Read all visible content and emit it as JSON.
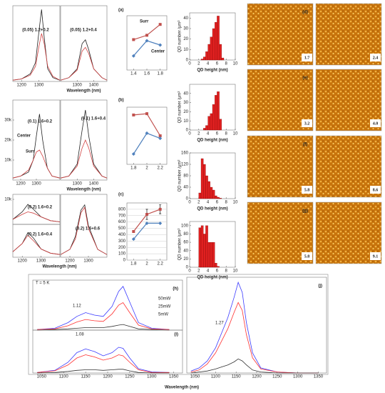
{
  "chart_data": [
    {
      "type": "line",
      "title": "(0.05) 1.2+0.2",
      "x": [
        1150,
        1200,
        1250,
        1280,
        1300,
        1315,
        1330,
        1350,
        1380,
        1420
      ],
      "xlim": [
        1150,
        1420
      ],
      "xticks": [
        1200,
        1300
      ],
      "ylim": [
        0,
        60000
      ],
      "series": [
        {
          "color": "#222222",
          "values": [
            1000,
            2000,
            6000,
            15000,
            40000,
            57000,
            35000,
            10000,
            3000,
            1000
          ]
        },
        {
          "color": "#d04040",
          "values": [
            1000,
            2000,
            5000,
            12000,
            28000,
            38000,
            30000,
            12000,
            4000,
            1000
          ]
        }
      ]
    },
    {
      "type": "line",
      "title": "(0.05) 1.2+0.4",
      "x": [
        1200,
        1250,
        1300,
        1330,
        1350,
        1370,
        1400,
        1450,
        1480
      ],
      "xlim": [
        1200,
        1480
      ],
      "xticks": [
        1300,
        1400
      ],
      "ylim": [
        0,
        60000
      ],
      "xlabel": "Wavelength (nm)",
      "series": [
        {
          "color": "#222222",
          "values": [
            1000,
            3000,
            10000,
            30000,
            33000,
            25000,
            10000,
            3000,
            1000
          ]
        },
        {
          "color": "#d04040",
          "values": [
            1000,
            3000,
            9000,
            24000,
            27000,
            22000,
            10000,
            3000,
            1000
          ]
        }
      ]
    },
    {
      "type": "line",
      "title": "(0.1) 1.6+0.2",
      "x": [
        1150,
        1200,
        1250,
        1280,
        1300,
        1320,
        1340,
        1370,
        1400,
        1450
      ],
      "xlim": [
        1150,
        1450
      ],
      "xticks": [
        1200,
        1300
      ],
      "ylim": [
        0,
        40000
      ],
      "yticks": [
        {
          "value": 10000,
          "label": "10k"
        },
        {
          "value": 20000,
          "label": "20k"
        },
        {
          "value": 30000,
          "label": "30k"
        }
      ],
      "annotations": [
        {
          "text": "Center",
          "color": "#111111"
        },
        {
          "text": "Surr",
          "color": "#c0392b"
        }
      ],
      "series": [
        {
          "color": "#222222",
          "values": [
            1000,
            2000,
            4000,
            10000,
            22000,
            33000,
            20000,
            6000,
            2000,
            1000
          ]
        },
        {
          "color": "#d04040",
          "values": [
            1000,
            2000,
            5000,
            10000,
            14000,
            15000,
            12000,
            6000,
            2000,
            1000
          ]
        }
      ]
    },
    {
      "type": "line",
      "title": "(0.1) 1.6+0.4",
      "x": [
        1200,
        1250,
        1300,
        1330,
        1350,
        1370,
        1400,
        1450,
        1480
      ],
      "xlim": [
        1200,
        1480
      ],
      "xticks": [
        1300,
        1400
      ],
      "ylim": [
        0,
        40000
      ],
      "xlabel": "Wavelength (nm)",
      "series": [
        {
          "color": "#222222",
          "values": [
            1000,
            2000,
            8000,
            25000,
            35000,
            22000,
            8000,
            2000,
            1000
          ]
        },
        {
          "color": "#d04040",
          "values": [
            1000,
            2000,
            7000,
            16000,
            20000,
            16000,
            7000,
            2000,
            1000
          ]
        }
      ]
    },
    {
      "type": "line",
      "title": "(0.2) 1.6+0.2",
      "x": [
        1150,
        1200,
        1230,
        1260,
        1300,
        1350,
        1400
      ],
      "xlim": [
        1150,
        1400
      ],
      "ylim": [
        0,
        12000
      ],
      "yticks": [
        {
          "value": 10000,
          "label": "10k"
        }
      ],
      "series": [
        {
          "color": "#222222",
          "values": [
            2000,
            5000,
            8000,
            6000,
            3000,
            1500,
            1000
          ]
        },
        {
          "color": "#d04040",
          "values": [
            2000,
            4000,
            5000,
            4500,
            3000,
            1500,
            1000
          ]
        }
      ]
    },
    {
      "type": "line",
      "title": "(0.2) 1.6+0.4",
      "x": [
        1150,
        1200,
        1230,
        1260,
        1300,
        1350,
        1400
      ],
      "xlim": [
        1150,
        1400
      ],
      "xticks": [
        1200,
        1300
      ],
      "ylim": [
        0,
        12000
      ],
      "series": [
        {
          "color": "#222222",
          "values": [
            2000,
            5000,
            9000,
            7000,
            3000,
            1500,
            1000
          ]
        },
        {
          "color": "#d04040",
          "values": [
            2000,
            5000,
            8000,
            6000,
            3000,
            1500,
            1000
          ]
        }
      ]
    },
    {
      "type": "line",
      "title": "(0.2) 1.6+0.6",
      "x": [
        1150,
        1200,
        1230,
        1260,
        1280,
        1300,
        1350,
        1400
      ],
      "xlim": [
        1150,
        1400
      ],
      "xticks": [
        1200,
        1300
      ],
      "ylim": [
        0,
        24000
      ],
      "xlabel": "Wavelength (nm)",
      "series": [
        {
          "color": "#222222",
          "values": [
            1000,
            3000,
            8000,
            18000,
            20000,
            12000,
            3000,
            1000
          ]
        },
        {
          "color": "#d04040",
          "values": [
            1000,
            3000,
            7000,
            17000,
            19000,
            11000,
            3000,
            1000
          ]
        }
      ]
    },
    {
      "type": "line",
      "title": "(a)",
      "x": [
        1.4,
        1.6,
        1.8
      ],
      "xlim": [
        1.3,
        1.9
      ],
      "xticks": [
        1.4,
        1.6,
        1.8
      ],
      "ylim": [
        100,
        350
      ],
      "annotations": [
        {
          "text": "Surr",
          "color": "#c0392b"
        },
        {
          "text": "Center",
          "color": "#2f6fd0"
        }
      ],
      "series": [
        {
          "color": "#c0504d",
          "marker": "square",
          "values": [
            240,
            260,
            310
          ]
        },
        {
          "color": "#4f81bd",
          "marker": "diamond",
          "values": [
            165,
            235,
            215
          ]
        }
      ]
    },
    {
      "type": "line",
      "title": "(b)",
      "x": [
        1.8,
        2,
        2.2
      ],
      "xlim": [
        1.7,
        2.3
      ],
      "xticks": [
        1.8,
        2,
        2.2
      ],
      "ylim": [
        200,
        420
      ],
      "series": [
        {
          "color": "#c0504d",
          "marker": "square",
          "values": [
            390,
            395,
            310
          ]
        },
        {
          "color": "#4f81bd",
          "marker": "diamond",
          "values": [
            240,
            320,
            300
          ]
        }
      ]
    },
    {
      "type": "line",
      "title": "(c)",
      "x": [
        1.8,
        2,
        2.2
      ],
      "xlim": [
        1.7,
        2.3
      ],
      "xticks": [
        1.8,
        2,
        2.2
      ],
      "ylim": [
        0,
        900
      ],
      "yticks": [
        0,
        100,
        200,
        300,
        400,
        500,
        600,
        700,
        800
      ],
      "grid": true,
      "series": [
        {
          "color": "#c0504d",
          "marker": "square",
          "values": [
            450,
            720,
            800
          ],
          "errors": [
            0,
            80,
            70
          ]
        },
        {
          "color": "#4f81bd",
          "marker": "diamond",
          "values": [
            330,
            580,
            580
          ]
        }
      ]
    },
    {
      "type": "histogram",
      "bins": [
        2.5,
        3,
        3.5,
        4,
        4.5,
        5,
        5.5,
        6,
        6.5,
        7,
        7.5
      ],
      "counts": [
        1,
        3,
        8,
        15,
        22,
        30,
        36,
        42,
        15,
        2
      ],
      "color": "#e02020",
      "xlim": [
        0,
        10
      ],
      "xticks": [
        0,
        2,
        4,
        6,
        8,
        10
      ],
      "ylim": [
        0,
        45
      ],
      "yticks": [
        0,
        10,
        20,
        30,
        40
      ],
      "xlabel": "QD height (nm)",
      "ylabel": "QD number /μm²"
    },
    {
      "type": "histogram",
      "bins": [
        3,
        3.5,
        4,
        4.5,
        5,
        5.5,
        6,
        6.5,
        7
      ],
      "counts": [
        2,
        5,
        15,
        18,
        28,
        38,
        42,
        12
      ],
      "color": "#e02020",
      "xlim": [
        0,
        10
      ],
      "xticks": [
        0,
        2,
        4,
        6,
        8,
        10
      ],
      "ylim": [
        0,
        50
      ],
      "yticks": [
        0,
        10,
        20,
        30,
        40
      ],
      "xlabel": "QD height (nm)",
      "ylabel": "QD number /μm²"
    },
    {
      "type": "histogram",
      "bins": [
        2,
        2.5,
        3,
        3.5,
        4,
        4.5,
        5,
        5.5,
        6,
        6.5,
        7
      ],
      "counts": [
        20,
        140,
        120,
        80,
        60,
        40,
        30,
        10,
        5,
        2
      ],
      "color": "#e02020",
      "xlim": [
        0,
        10
      ],
      "xticks": [
        0,
        2,
        4,
        6,
        8,
        10
      ],
      "ylim": [
        0,
        160
      ],
      "yticks": [
        0,
        40,
        80,
        120,
        160
      ],
      "xlabel": "QD height (nm)",
      "ylabel": "QD number /μm²"
    },
    {
      "type": "histogram",
      "bins": [
        2,
        2.5,
        3,
        3.5,
        4,
        4.5,
        5,
        5.5,
        6,
        6.5
      ],
      "counts": [
        95,
        100,
        80,
        100,
        60,
        60,
        60,
        10,
        2
      ],
      "color": "#e02020",
      "xlim": [
        0,
        10
      ],
      "xticks": [
        0,
        2,
        4,
        6,
        8,
        10
      ],
      "ylim": [
        0,
        110
      ],
      "yticks": [
        0,
        20,
        40,
        60,
        80,
        100
      ],
      "xlabel": "QD height (nm)",
      "ylabel": "QD number /μm²"
    },
    {
      "type": "line",
      "title": "(h)",
      "x": [
        1040,
        1080,
        1110,
        1130,
        1150,
        1170,
        1190,
        1210,
        1225,
        1235,
        1250,
        1270,
        1300,
        1340
      ],
      "xlim": [
        1030,
        1370
      ],
      "ylim": [
        0,
        80
      ],
      "annotations": [
        {
          "text": "T = 5 K",
          "color": "#111111"
        },
        {
          "text": "1.12",
          "color": "#111111"
        }
      ],
      "series": [
        {
          "name": "50mW",
          "color": "#3a3aff",
          "values": [
            1,
            3,
            12,
            22,
            28,
            24,
            22,
            38,
            62,
            70,
            45,
            12,
            3,
            1
          ]
        },
        {
          "name": "25mW",
          "color": "#ff3030",
          "values": [
            1,
            2,
            7,
            13,
            17,
            15,
            14,
            26,
            40,
            44,
            28,
            8,
            2,
            1
          ]
        },
        {
          "name": "5mW",
          "color": "#333333",
          "values": [
            0,
            1,
            2,
            3,
            4,
            4,
            4,
            6,
            8,
            9,
            6,
            2,
            1,
            0
          ]
        }
      ]
    },
    {
      "type": "line",
      "title": "(i)",
      "x": [
        1040,
        1080,
        1110,
        1130,
        1150,
        1170,
        1190,
        1210,
        1225,
        1235,
        1250,
        1270,
        1300,
        1340
      ],
      "xlim": [
        1030,
        1370
      ],
      "xticks": [
        1050,
        1100,
        1150,
        1200,
        1250,
        1300,
        1350
      ],
      "ylim": [
        0,
        80
      ],
      "xlabel": "Wavelength (nm)",
      "annotations": [
        {
          "text": "1.08",
          "color": "#111111"
        }
      ],
      "series": [
        {
          "color": "#3a3aff",
          "values": [
            1,
            5,
            20,
            38,
            45,
            40,
            32,
            38,
            48,
            46,
            28,
            8,
            2,
            1
          ]
        },
        {
          "color": "#ff3030",
          "values": [
            1,
            4,
            15,
            28,
            34,
            30,
            24,
            28,
            34,
            32,
            20,
            6,
            1,
            1
          ]
        },
        {
          "color": "#333333",
          "values": [
            0,
            1,
            3,
            5,
            6,
            6,
            5,
            6,
            7,
            7,
            4,
            1,
            0,
            0
          ]
        }
      ]
    },
    {
      "type": "line",
      "title": "(j)",
      "x": [
        1040,
        1060,
        1080,
        1100,
        1115,
        1130,
        1145,
        1155,
        1165,
        1175,
        1190,
        1210,
        1250,
        1300,
        1350
      ],
      "xlim": [
        1030,
        1370
      ],
      "xticks": [
        1050,
        1100,
        1150,
        1200,
        1250,
        1300,
        1350
      ],
      "ylim": [
        0,
        95
      ],
      "annotations": [
        {
          "text": "1.27",
          "color": "#111111"
        }
      ],
      "series": [
        {
          "color": "#3a3aff",
          "values": [
            2,
            5,
            12,
            25,
            40,
            55,
            75,
            90,
            80,
            50,
            20,
            5,
            1,
            0,
            0
          ]
        },
        {
          "color": "#ff3030",
          "values": [
            1,
            3,
            9,
            20,
            32,
            44,
            60,
            70,
            62,
            38,
            15,
            4,
            1,
            0,
            0
          ]
        },
        {
          "color": "#333333",
          "values": [
            0,
            1,
            2,
            4,
            6,
            8,
            11,
            14,
            12,
            8,
            3,
            1,
            0,
            0,
            0
          ]
        }
      ]
    }
  ],
  "afm": [
    {
      "panel": "(d)",
      "images": [
        {
          "label": "1.7",
          "color": "#111111"
        },
        {
          "label": "2.4",
          "color": "#111111"
        }
      ]
    },
    {
      "panel": "(e)",
      "images": [
        {
          "label": "3.2",
          "color": "#111111"
        },
        {
          "label": "4.0",
          "color": "#c0392b"
        }
      ]
    },
    {
      "panel": "(f)",
      "images": [
        {
          "label": "5.8",
          "color": "#c0392b"
        },
        {
          "label": "8.6",
          "color": "#c0392b"
        }
      ]
    },
    {
      "panel": "(g)",
      "images": [
        {
          "label": "5.8",
          "color": "#c0392b"
        },
        {
          "label": "9.1",
          "color": "#c0392b"
        }
      ]
    }
  ]
}
